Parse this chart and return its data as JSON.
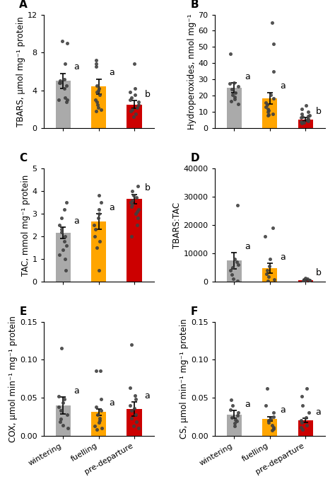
{
  "panels": [
    {
      "label": "A",
      "ylabel": "TBARS, μmol mg⁻¹ protein",
      "ylim": [
        0,
        12
      ],
      "yticks": [
        0,
        4,
        8,
        12
      ],
      "bar_means": [
        5.0,
        4.4,
        2.5
      ],
      "bar_errors": [
        0.8,
        0.8,
        0.4
      ],
      "sig_labels": [
        "a",
        "a",
        "b"
      ],
      "dots": [
        [
          9.2,
          9.0,
          6.8,
          5.2,
          5.0,
          4.8,
          4.8,
          4.5,
          4.2,
          3.2,
          3.0,
          3.0,
          2.8
        ],
        [
          7.2,
          6.8,
          6.5,
          4.5,
          4.2,
          4.0,
          3.8,
          3.5,
          3.0,
          2.8,
          2.5,
          2.2,
          2.0,
          1.8
        ],
        [
          6.8,
          4.2,
          3.8,
          3.5,
          3.2,
          3.0,
          2.8,
          2.5,
          2.2,
          2.0,
          1.8,
          1.5,
          1.2
        ]
      ]
    },
    {
      "label": "B",
      "ylabel": "Hydroperoxides, nmol mg⁻¹",
      "ylim": [
        0,
        70
      ],
      "yticks": [
        0,
        10,
        20,
        30,
        40,
        50,
        60,
        70
      ],
      "bar_means": [
        25.0,
        18.5,
        5.5
      ],
      "bar_errors": [
        3.0,
        3.5,
        1.0
      ],
      "sig_labels": [
        "a",
        "a",
        "b"
      ],
      "dots": [
        [
          46.0,
          28.0,
          27.5,
          26.0,
          24.0,
          22.0,
          20.5,
          19.5,
          18.0,
          16.5,
          15.0
        ],
        [
          65.0,
          52.0,
          35.0,
          20.5,
          18.5,
          16.0,
          14.5,
          13.0,
          12.0,
          11.0,
          10.0,
          9.0,
          8.5,
          8.0
        ],
        [
          14.0,
          12.0,
          10.0,
          9.0,
          8.0,
          7.5,
          7.0,
          6.5,
          6.0,
          5.5,
          5.0,
          4.5,
          4.0,
          3.5,
          3.0
        ]
      ]
    },
    {
      "label": "C",
      "ylabel": "TAC, mmol mg⁻¹ protein",
      "ylim": [
        0,
        5
      ],
      "yticks": [
        0,
        1,
        2,
        3,
        4,
        5
      ],
      "bar_means": [
        2.15,
        2.65,
        3.65
      ],
      "bar_errors": [
        0.25,
        0.35,
        0.2
      ],
      "sig_labels": [
        "a",
        "a",
        "b"
      ],
      "dots": [
        [
          3.5,
          3.2,
          2.8,
          2.5,
          2.3,
          2.2,
          2.0,
          1.8,
          1.6,
          1.4,
          1.2,
          1.0,
          0.5
        ],
        [
          3.8,
          3.5,
          3.2,
          3.0,
          2.8,
          2.5,
          2.3,
          2.0,
          1.8,
          1.5,
          0.5
        ],
        [
          4.2,
          4.0,
          3.8,
          3.7,
          3.6,
          3.5,
          3.4,
          3.3,
          3.2,
          3.1,
          3.0,
          2.8,
          2.5,
          2.0
        ]
      ]
    },
    {
      "label": "D",
      "ylabel": "TBARS:TAC",
      "ylim": [
        0,
        40000
      ],
      "yticks": [
        0,
        10000,
        20000,
        30000,
        40000
      ],
      "bar_means": [
        7500,
        4800,
        700
      ],
      "bar_errors": [
        2800,
        1800,
        200
      ],
      "sig_labels": [
        "a",
        "a",
        "b"
      ],
      "dots": [
        [
          27000,
          8000,
          7000,
          6000,
          5000,
          4000,
          2500,
          1200,
          400
        ],
        [
          19000,
          16000,
          8000,
          5500,
          4000,
          2800,
          1800,
          900,
          400
        ],
        [
          1400,
          1100,
          900,
          700,
          550,
          350,
          180,
          80
        ]
      ]
    },
    {
      "label": "E",
      "ylabel": "COX, μmol min⁻¹ mg⁻¹ protein",
      "ylim": [
        0,
        0.15
      ],
      "yticks": [
        0.0,
        0.05,
        0.1,
        0.15
      ],
      "bar_means": [
        0.04,
        0.031,
        0.035
      ],
      "bar_errors": [
        0.011,
        0.004,
        0.009
      ],
      "sig_labels": [
        "a",
        "a",
        "a"
      ],
      "dots": [
        [
          0.115,
          0.052,
          0.048,
          0.043,
          0.038,
          0.033,
          0.028,
          0.022,
          0.018,
          0.014,
          0.01
        ],
        [
          0.085,
          0.085,
          0.048,
          0.038,
          0.033,
          0.028,
          0.023,
          0.02,
          0.017,
          0.013,
          0.01,
          0.008
        ],
        [
          0.12,
          0.063,
          0.053,
          0.048,
          0.04,
          0.036,
          0.033,
          0.028,
          0.023,
          0.018,
          0.013,
          0.01
        ]
      ]
    },
    {
      "label": "F",
      "ylabel": "CS, μmol min⁻¹ mg⁻¹ protein",
      "ylim": [
        0,
        0.15
      ],
      "yticks": [
        0.0,
        0.05,
        0.1,
        0.15
      ],
      "bar_means": [
        0.028,
        0.022,
        0.02
      ],
      "bar_errors": [
        0.005,
        0.003,
        0.003
      ],
      "sig_labels": [
        "a",
        "a",
        "a"
      ],
      "dots": [
        [
          0.047,
          0.04,
          0.034,
          0.03,
          0.027,
          0.024,
          0.021,
          0.019,
          0.016,
          0.013
        ],
        [
          0.062,
          0.04,
          0.03,
          0.025,
          0.022,
          0.02,
          0.017,
          0.014,
          0.011,
          0.009,
          0.007
        ],
        [
          0.062,
          0.052,
          0.04,
          0.03,
          0.024,
          0.02,
          0.017,
          0.014,
          0.011,
          0.008
        ]
      ]
    }
  ],
  "bar_colors": [
    "#aaaaaa",
    "#FFA500",
    "#cc0000"
  ],
  "dot_color": "#404040",
  "xticklabels": [
    "wintering",
    "fuelling",
    "pre-departure"
  ],
  "label_fontsize": 8.5,
  "tick_fontsize": 8,
  "sig_fontsize": 9,
  "panel_label_fontsize": 11,
  "bar_width": 0.42
}
